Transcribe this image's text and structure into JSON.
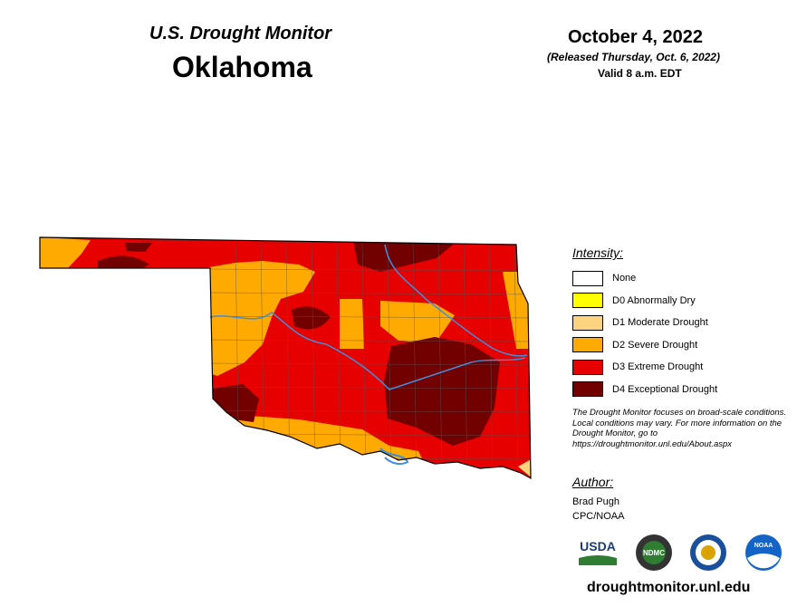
{
  "header": {
    "title": "U.S. Drought Monitor",
    "state": "Oklahoma",
    "date": "October 4, 2022",
    "released": "(Released Thursday, Oct. 6, 2022)",
    "valid": "Valid 8 a.m. EDT"
  },
  "legend": {
    "title": "Intensity:",
    "items": [
      {
        "label": "None",
        "color": "#ffffff"
      },
      {
        "label": "D0 Abnormally Dry",
        "color": "#ffff00"
      },
      {
        "label": "D1 Moderate Drought",
        "color": "#fcd37f"
      },
      {
        "label": "D2 Severe Drought",
        "color": "#ffaa00"
      },
      {
        "label": "D3 Extreme Drought",
        "color": "#e60000"
      },
      {
        "label": "D4 Exceptional Drought",
        "color": "#730000"
      }
    ]
  },
  "note": "The Drought Monitor focuses on broad-scale conditions. Local conditions may vary. For more information on the Drought Monitor, go to https://droughtmonitor.unl.edu/About.aspx",
  "author": {
    "title": "Author:",
    "lines": [
      "Brad Pugh",
      "CPC/NOAA"
    ]
  },
  "logos": [
    "USDA",
    "NDMC",
    "NOAA"
  ],
  "website": "droughtmonitor.unl.edu"
}
